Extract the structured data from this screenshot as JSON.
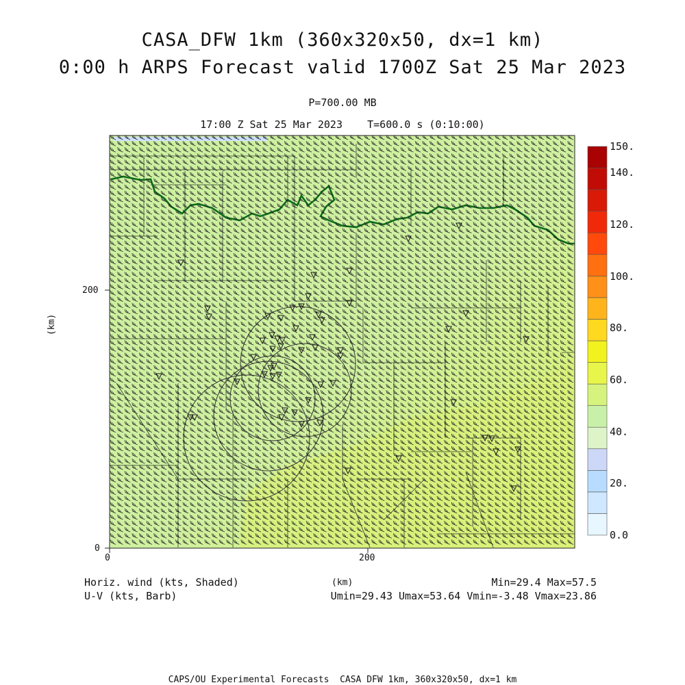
{
  "header": {
    "title_line1": "CASA_DFW 1km (360x320x50, dx=1 km)",
    "title_line2": "0:00 h ARPS Forecast valid 1700Z Sat 25 Mar 2023",
    "pressure_level": "P=700.00 MB",
    "time_line": "17:00 Z Sat 25 Mar 2023    T=600.0 s (0:10:00)"
  },
  "axes": {
    "x_ticks": [
      "0",
      "200"
    ],
    "y_ticks": [
      "0",
      "200"
    ],
    "x_label": "(km)",
    "y_label": "(km)"
  },
  "colorbar": {
    "labels": [
      "0.0",
      "20.",
      "40.",
      "60.",
      "80.",
      "100.",
      "120.",
      "140.",
      "150."
    ],
    "colors": [
      "#e8f6ff",
      "#cfe7ff",
      "#b8dcff",
      "#cdd8f8",
      "#ddf4c8",
      "#c8f0a8",
      "#d6f37e",
      "#e8f54a",
      "#f2f21f",
      "#ffd820",
      "#ffb41c",
      "#ff9018",
      "#ff7010",
      "#ff4a0c",
      "#f02a08",
      "#d81a06",
      "#c00c04",
      "#a80202"
    ]
  },
  "footer": {
    "left1": "Horiz. wind (kts, Shaded)",
    "left2": "U-V (kts, Barb)",
    "right1": "Min=29.4 Max=57.5",
    "right2": "Umin=29.43 Umax=53.64 Vmin=-3.48 Vmax=23.86",
    "credits": "CAPS/OU Experimental Forecasts  CASA DFW 1km, 360x320x50, dx=1 km"
  },
  "field": {
    "variable": "Horizontal wind speed (kts)",
    "min": 29.4,
    "max": 57.5,
    "barb_direction": "westerly to west-southwesterly",
    "colors": {
      "low": "#ccf0a0",
      "high": "#e0f070",
      "coast_line": "#0a6e1a",
      "county_lines": "#1a2a1a",
      "barbs": "#222222"
    }
  }
}
